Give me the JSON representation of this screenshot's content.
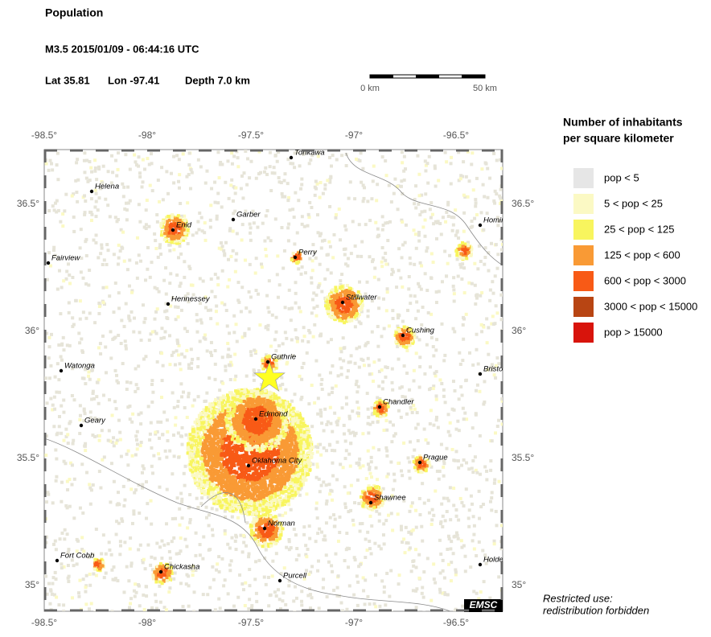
{
  "header": {
    "title": "Population",
    "event": "M3.5  2015/01/09 - 06:44:16 UTC",
    "lat": "Lat 35.81",
    "lon": "Lon -97.41",
    "depth": "Depth  7.0 km"
  },
  "scale": {
    "start": "0 km",
    "end": "50 km"
  },
  "axes": {
    "lon": [
      "-98.5°",
      "-98°",
      "-97.5°",
      "-97°",
      "-96.5°"
    ],
    "lat": [
      "36.5°",
      "36°",
      "35.5°",
      "35°"
    ]
  },
  "cities": [
    "Tonkawa",
    "Helena",
    "Enid",
    "Garber",
    "Fairview",
    "Perry",
    "Hennessey",
    "Stillwater",
    "Cushing",
    "Watonga",
    "Guthrie",
    "Bristow",
    "Chandler",
    "Edmond",
    "Geary",
    "Prague",
    "Oklahoma City",
    "Shawnee",
    "Norman",
    "Hominy",
    "Fort Cobb",
    "Chickasha",
    "Holdenville",
    "Purcell"
  ],
  "legend": {
    "title": [
      "Number of inhabitants",
      "per square kilometer"
    ],
    "items": [
      {
        "label": "pop < 5",
        "color": "#e6e6e6"
      },
      {
        "label": "5 < pop < 25",
        "color": "#fbf9c4"
      },
      {
        "label": "25 < pop < 125",
        "color": "#f8f55e"
      },
      {
        "label": "125 < pop < 600",
        "color": "#f99a35"
      },
      {
        "label": "600 < pop < 3000",
        "color": "#f85a16"
      },
      {
        "label": "3000 < pop < 15000",
        "color": "#b84513"
      },
      {
        "label": "pop > 15000",
        "color": "#d8140c"
      }
    ]
  },
  "footer": {
    "note": [
      "Restricted use:",
      "redistribution forbidden"
    ],
    "logo": "EMSC"
  }
}
